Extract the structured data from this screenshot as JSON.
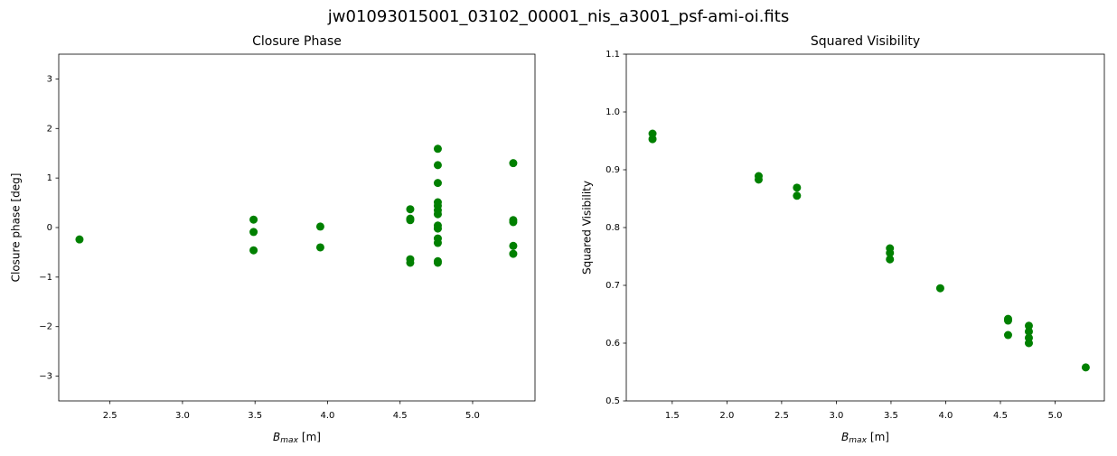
{
  "title": "jw01093015001_03102_00001_nis_a3001_psf-ami-oi.fits",
  "chart_data": [
    {
      "type": "scatter",
      "title": "Closure Phase",
      "ylabel": "Closure phase [deg]",
      "xlabel": {
        "symbol": "B",
        "subscript": "max",
        "text": "[m]"
      },
      "color": "#008000",
      "grid": false,
      "x": [
        2.29,
        3.49,
        3.49,
        3.49,
        3.95,
        3.95,
        4.57,
        4.57,
        4.57,
        4.57,
        4.57,
        4.76,
        4.76,
        4.76,
        4.76,
        4.76,
        4.76,
        4.76,
        4.76,
        4.76,
        4.76,
        4.76,
        4.76,
        4.76,
        5.28,
        5.28,
        5.28,
        5.28,
        5.28
      ],
      "values": [
        -0.24,
        0.16,
        -0.09,
        -0.46,
        0.02,
        -0.4,
        0.37,
        0.18,
        0.15,
        -0.64,
        -0.71,
        1.59,
        1.26,
        0.9,
        0.51,
        0.44,
        0.35,
        0.27,
        0.04,
        -0.02,
        -0.22,
        -0.31,
        -0.68,
        -0.71,
        1.3,
        0.15,
        0.11,
        -0.37,
        -0.53
      ],
      "xlim": [
        2.147,
        5.43
      ],
      "ylim": [
        -3.5,
        3.5
      ],
      "xticks": [
        2.5,
        {
          "value": 3,
          "label": "3.0"
        },
        3.5,
        {
          "value": 4,
          "label": "4.0"
        },
        4.5,
        {
          "value": 5,
          "label": "5.0"
        }
      ],
      "yticks": [
        {
          "value": -3,
          "label": "−3"
        },
        {
          "value": -2,
          "label": "−2"
        },
        {
          "value": -1,
          "label": "−1"
        },
        0,
        1,
        2,
        3
      ]
    },
    {
      "type": "scatter",
      "title": "Squared Visibility",
      "ylabel": "Squared Visibility",
      "xlabel": {
        "symbol": "B",
        "subscript": "max",
        "text": "[m]"
      },
      "color": "#008000",
      "grid": false,
      "x": [
        1.32,
        1.32,
        2.29,
        2.29,
        2.64,
        2.64,
        3.49,
        3.49,
        3.49,
        3.95,
        4.57,
        4.57,
        4.57,
        4.76,
        4.76,
        4.76,
        4.76,
        5.28
      ],
      "values": [
        0.9625,
        0.953,
        0.889,
        0.883,
        0.869,
        0.855,
        0.764,
        0.756,
        0.745,
        0.695,
        0.642,
        0.639,
        0.614,
        0.63,
        0.62,
        0.609,
        0.6,
        0.558
      ],
      "xlim": [
        1.08,
        5.45
      ],
      "ylim": [
        0.5,
        1.1
      ],
      "xticks": [
        1.5,
        {
          "value": 2,
          "label": "2.0"
        },
        2.5,
        {
          "value": 3,
          "label": "3.0"
        },
        3.5,
        {
          "value": 4,
          "label": "4.0"
        },
        4.5,
        {
          "value": 5,
          "label": "5.0"
        }
      ],
      "yticks": [
        0.5,
        0.6,
        0.7,
        0.8,
        0.9,
        {
          "value": 1,
          "label": "1.0"
        },
        1.1
      ]
    }
  ]
}
